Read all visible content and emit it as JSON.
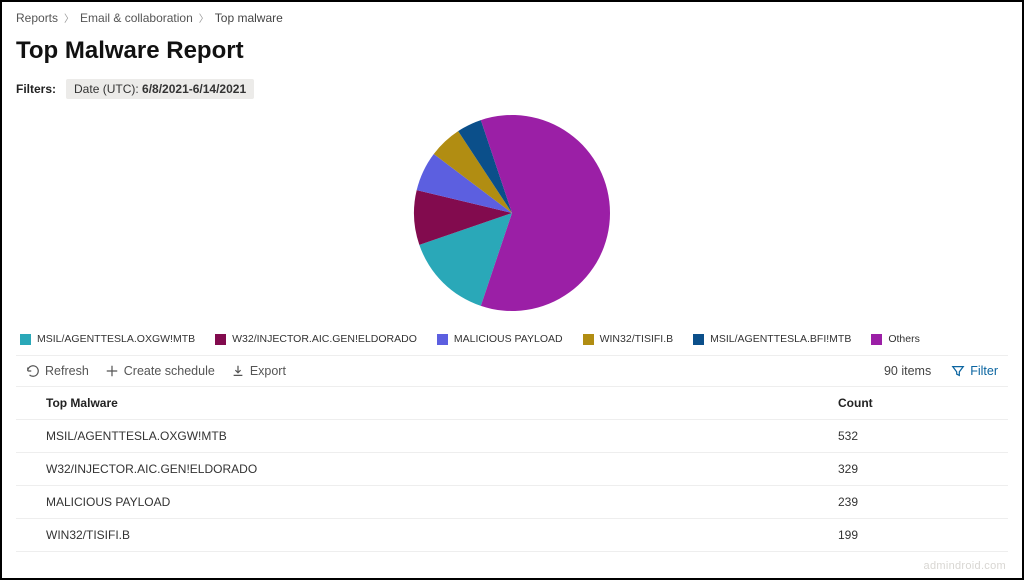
{
  "breadcrumb": {
    "items": [
      "Reports",
      "Email & collaboration",
      "Top malware"
    ]
  },
  "page_title": "Top Malware Report",
  "filters": {
    "label": "Filters:",
    "chip_prefix": "Date (UTC): ",
    "chip_value": "6/8/2021-6/14/2021"
  },
  "chart": {
    "type": "pie",
    "background": "#ffffff",
    "slices": [
      {
        "label": "MSIL/AGENTTESLA.OXGW!MTB",
        "value": 532,
        "color": "#2aa8b8"
      },
      {
        "label": "W32/INJECTOR.AIC.GEN!ELDORADO",
        "value": 329,
        "color": "#820b4e"
      },
      {
        "label": "MALICIOUS PAYLOAD",
        "value": 239,
        "color": "#5c5fe0"
      },
      {
        "label": "WIN32/TISIFI.B",
        "value": 199,
        "color": "#b18d12"
      },
      {
        "label": "MSIL/AGENTTESLA.BFI!MTB",
        "value": 150,
        "color": "#0b4f8a"
      },
      {
        "label": "Others",
        "value": 2200,
        "color": "#9b1fa6"
      }
    ],
    "radius": 98,
    "start_angle_deg": 90
  },
  "legend": [
    {
      "label": "MSIL/AGENTTESLA.OXGW!MTB",
      "color": "#2aa8b8"
    },
    {
      "label": "W32/INJECTOR.AIC.GEN!ELDORADO",
      "color": "#820b4e"
    },
    {
      "label": "MALICIOUS PAYLOAD",
      "color": "#5c5fe0"
    },
    {
      "label": "WIN32/TISIFI.B",
      "color": "#b18d12"
    },
    {
      "label": "MSIL/AGENTTESLA.BFI!MTB",
      "color": "#0b4f8a"
    },
    {
      "label": "Others",
      "color": "#9b1fa6"
    }
  ],
  "toolbar": {
    "refresh": "Refresh",
    "schedule": "Create schedule",
    "export": "Export",
    "count": "90 items",
    "filter": "Filter"
  },
  "table": {
    "columns": [
      "Top Malware",
      "Count"
    ],
    "rows": [
      [
        "MSIL/AGENTTESLA.OXGW!MTB",
        "532"
      ],
      [
        "W32/INJECTOR.AIC.GEN!ELDORADO",
        "329"
      ],
      [
        "MALICIOUS PAYLOAD",
        "239"
      ],
      [
        "WIN32/TISIFI.B",
        "199"
      ]
    ]
  },
  "watermark": "admindroid.com"
}
